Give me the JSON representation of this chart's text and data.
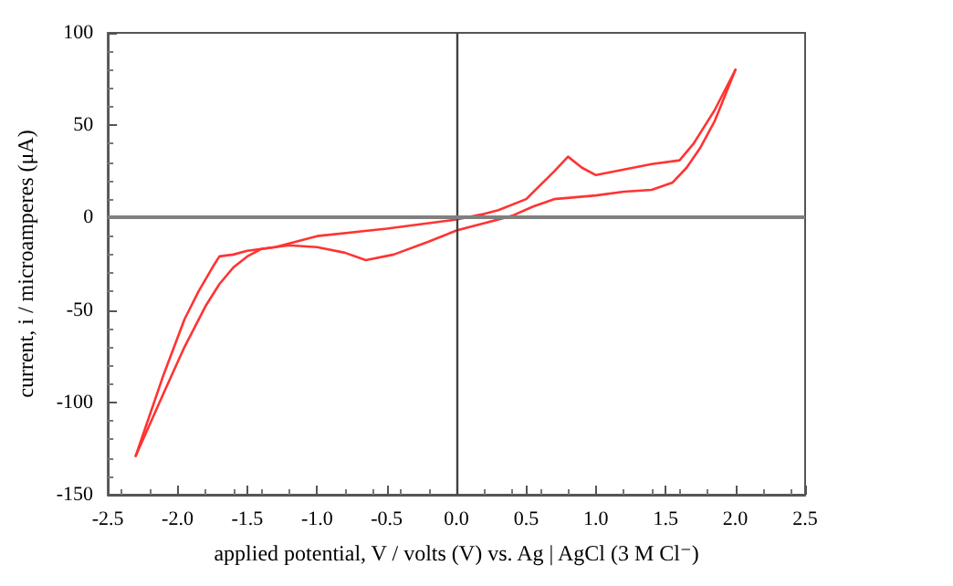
{
  "chart_data": {
    "type": "line",
    "xlabel": "applied potential, V / volts (V) vs. Ag | AgCl (3 M Cl⁻)",
    "ylabel": "current, i / microamperes (μA)",
    "xlim": [
      -2.5,
      2.5
    ],
    "xticks": [
      {
        "value": -2.5,
        "label": "-2.5"
      },
      {
        "value": -2,
        "label": "-2.0"
      },
      {
        "value": -1.5,
        "label": "-1.5"
      },
      {
        "value": -1,
        "label": "-1.0"
      },
      {
        "value": -0.5,
        "label": "-0.5"
      },
      {
        "value": 0,
        "label": "0.0"
      },
      {
        "value": 0.5,
        "label": "0.5"
      },
      {
        "value": 1,
        "label": "1.0"
      },
      {
        "value": 1.5,
        "label": "1.5"
      },
      {
        "value": 2,
        "label": "2.0"
      },
      {
        "value": 2.5,
        "label": "2.5"
      }
    ],
    "ylim": [
      -150,
      100
    ],
    "yticks": [
      -150,
      -100,
      -50,
      0,
      50,
      100
    ],
    "grid": false,
    "marker": "none",
    "line_style": "solid",
    "ref_lines": [
      {
        "axis": "x",
        "value": 0,
        "color": "#404040"
      },
      {
        "axis": "y",
        "value": 0,
        "color": "#808080"
      }
    ],
    "series": [
      {
        "color": "#ff3333",
        "x": [
          2.0,
          1.85,
          1.7,
          1.6,
          1.4,
          1.2,
          1.0,
          0.9,
          0.8,
          0.7,
          0.5,
          0.3,
          0.2,
          0.0,
          -0.5,
          -1.0,
          -1.3,
          -1.5,
          -1.6,
          -1.7,
          -1.75,
          -1.85,
          -1.95,
          -2.1,
          -2.3
        ],
        "values": [
          80,
          58,
          40,
          31,
          29,
          26,
          23,
          27,
          33,
          25,
          10,
          4,
          2,
          -1,
          -6,
          -10,
          -16,
          -18,
          -20,
          -21,
          -27,
          -40,
          -55,
          -85,
          -129
        ]
      },
      {
        "color": "#ff3333",
        "x": [
          -2.3,
          -2.1,
          -1.95,
          -1.8,
          -1.7,
          -1.6,
          -1.5,
          -1.4,
          -1.3,
          -1.2,
          -1.0,
          -0.8,
          -0.65,
          -0.45,
          -0.2,
          0.0,
          0.2,
          0.4,
          0.55,
          0.7,
          0.85,
          1.0,
          1.2,
          1.4,
          1.55,
          1.65,
          1.75,
          1.85,
          2.0
        ],
        "values": [
          -129,
          -95,
          -70,
          -48,
          -36,
          -27,
          -21,
          -17,
          -16,
          -15,
          -16,
          -19,
          -23,
          -20,
          -13,
          -7,
          -3,
          1,
          6,
          10,
          11,
          12,
          14,
          15,
          19,
          27,
          38,
          52,
          80
        ]
      }
    ]
  }
}
